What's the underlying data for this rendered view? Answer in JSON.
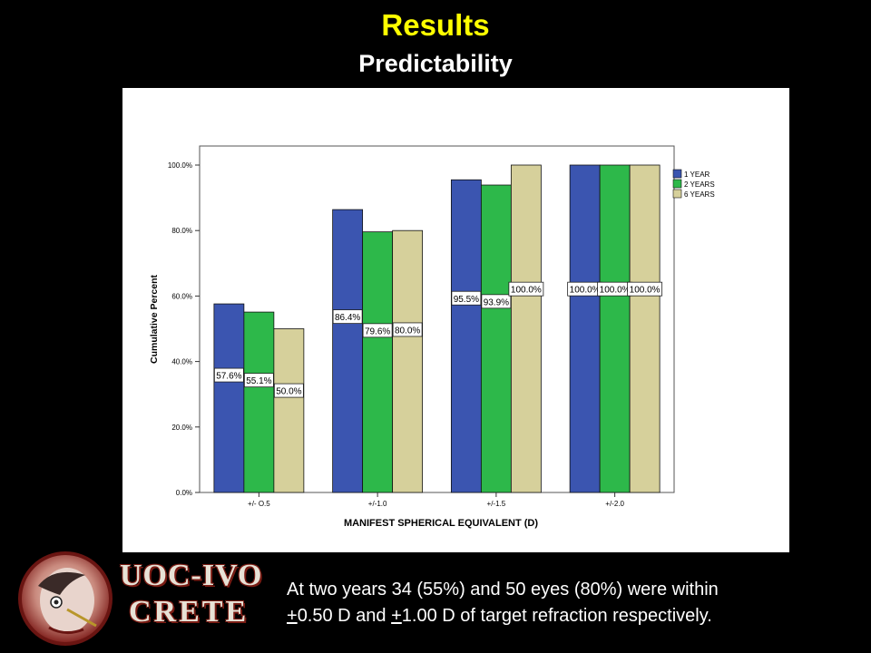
{
  "slide": {
    "title": "Results",
    "subtitle": "Predictability"
  },
  "chart_data": {
    "type": "bar",
    "categories": [
      "+/- O.5",
      "+/-1.0",
      "+/-1.5",
      "+/-2.0"
    ],
    "series": [
      {
        "name": "1 YEAR",
        "values": [
          57.6,
          86.4,
          95.5,
          100.0
        ],
        "labels": [
          "57.6%",
          "86.4%",
          "95.5%",
          "100.0%"
        ],
        "color": "#3b55b0"
      },
      {
        "name": "2 YEARS",
        "values": [
          55.1,
          79.6,
          93.9,
          100.0
        ],
        "labels": [
          "55.1%",
          "79.6%",
          "93.9%",
          "100.0%"
        ],
        "color": "#2db84a"
      },
      {
        "name": "6 YEARS",
        "values": [
          50.0,
          80.0,
          100.0,
          100.0
        ],
        "labels": [
          "50.0%",
          "80.0%",
          "100.0%",
          "100.0%"
        ],
        "color": "#d6d09b"
      }
    ],
    "title": "",
    "xlabel": "MANIFEST SPHERICAL EQUIVALENT (D)",
    "ylabel": "Cumulative Percent",
    "ylim": [
      0,
      105
    ],
    "yticks": [
      0,
      20,
      40,
      60,
      80,
      100
    ],
    "ytick_labels": [
      "0.0%",
      "20.0%",
      "40.0%",
      "60.0%",
      "80.0%",
      "100.0%"
    ],
    "legend": "top-right",
    "grid": false
  },
  "caption": {
    "line1": "At two years 34 (55%) and 50 eyes (80%) were within",
    "pm1": "+",
    "mid": "0.50 D and ",
    "pm2": "+",
    "end": "1.00 D of target refraction respectively."
  },
  "logo": {
    "line1": "UOC-IVO",
    "line2": "CRETE"
  }
}
